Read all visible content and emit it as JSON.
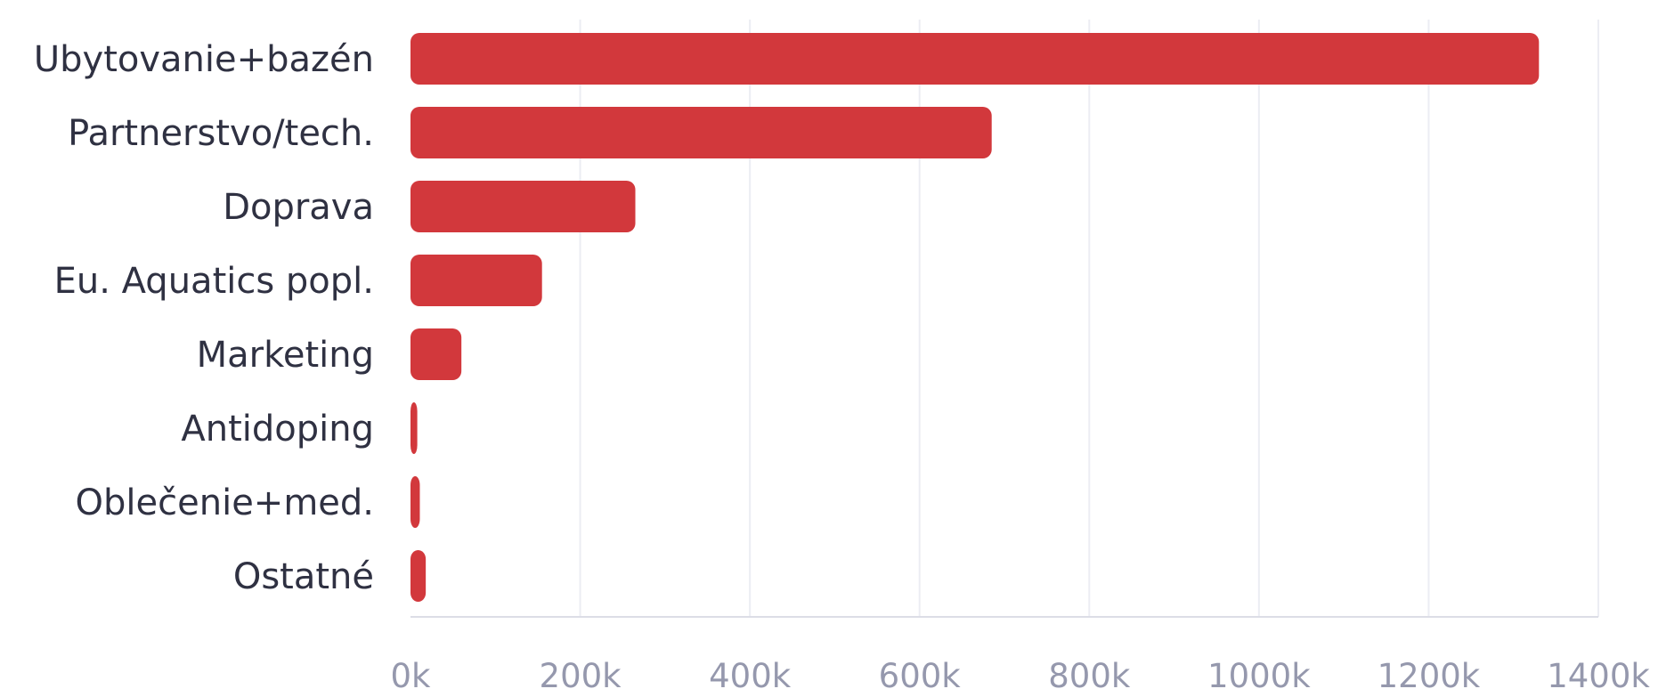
{
  "chart_data": {
    "type": "bar",
    "orientation": "horizontal",
    "categories": [
      "Ubytovanie+bazén",
      "Partnerstvo/tech.",
      "Doprava",
      "Eu. Aquatics popl.",
      "Marketing",
      "Antidoping",
      "Oblečenie+med.",
      "Ostatné"
    ],
    "values": [
      1330000,
      685000,
      265000,
      155000,
      60000,
      8000,
      11000,
      18000
    ],
    "xlim": [
      0,
      1400000
    ],
    "x_ticks": [
      0,
      200000,
      400000,
      600000,
      800000,
      1000000,
      1200000,
      1400000
    ],
    "x_tick_labels": [
      "0k",
      "200k",
      "400k",
      "600k",
      "800k",
      "1000k",
      "1200k",
      "1400k"
    ],
    "grid": "vertical",
    "legend": "none",
    "bar_color": "#d2383c",
    "label_color": "#2f3142",
    "tick_color": "#9598ad",
    "grid_color": "#ecedf3"
  }
}
